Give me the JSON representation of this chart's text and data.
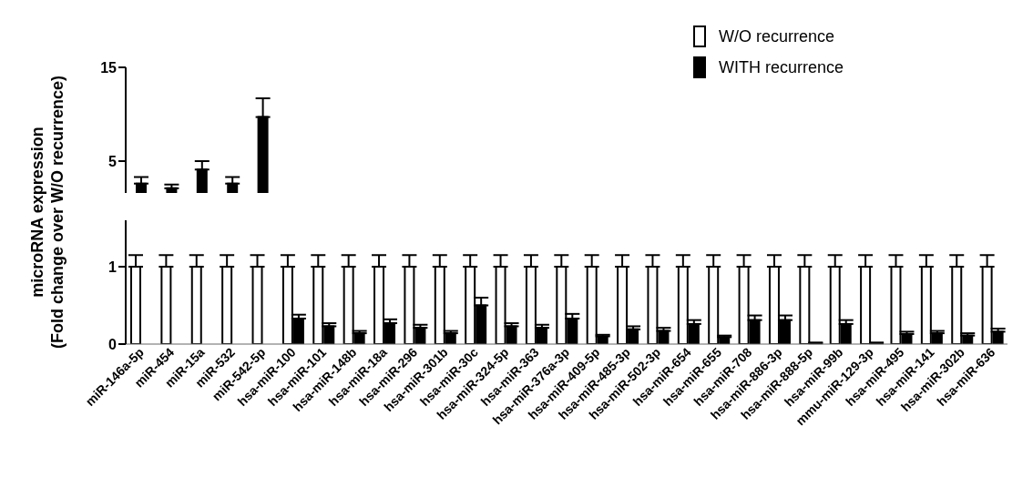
{
  "chart_data": [
    {
      "type": "bar",
      "categories": [
        null,
        null,
        null,
        null,
        null
      ],
      "series": [
        {
          "color": "#000000",
          "values": [
            2.6,
            2.1,
            4.1,
            2.6,
            9.7
          ],
          "errors": [
            0.7,
            0.4,
            0.9,
            0.7,
            2.0
          ]
        }
      ],
      "ylim": [
        1.6,
        15
      ],
      "yticks": [
        5,
        15
      ],
      "tick_labels": "y",
      "grid": false
    },
    {
      "type": "bar",
      "ylabel": "microRNA expression\n(Fold change over W/O recurrence)",
      "categories": [
        "miR-146a-5p",
        "miR-454",
        "miR-15a",
        "miR-532",
        "miR-542-5p",
        "hsa-miR-100",
        "hsa-miR-101",
        "hsa-miR-148b",
        "hsa-miR-18a",
        "hsa-miR-296",
        "hsa-miR-301b",
        "hsa-miR-30c",
        "hsa-miR-324-5p",
        "hsa-miR-363",
        "hsa-miR-376a-3p",
        "hsa-miR-409-5p",
        "hsa-miR-485-3p",
        "hsa-miR-502-3p",
        "hsa-miR-654",
        "hsa-miR-655",
        "hsa-miR-708",
        "hsa-miR-886-3p",
        "hsa-miR-888-5p",
        "hsa-miR-99b",
        "mmu-miR-129-3p",
        "hsa-miR-495",
        "hsa-miR-141",
        "hsa-miR-302b",
        "hsa-miR-636"
      ],
      "series": [
        {
          "name": "W/O recurrence",
          "color": "#ffffff",
          "values": [
            1,
            1,
            1,
            1,
            1,
            1,
            1,
            1,
            1,
            1,
            1,
            1,
            1,
            1,
            1,
            1,
            1,
            1,
            1,
            1,
            1,
            1,
            1,
            1,
            1,
            1,
            1,
            1,
            1
          ],
          "errors": [
            0.15,
            0.15,
            0.15,
            0.15,
            0.15,
            0.15,
            0.15,
            0.15,
            0.15,
            0.15,
            0.15,
            0.15,
            0.15,
            0.15,
            0.15,
            0.15,
            0.15,
            0.15,
            0.15,
            0.15,
            0.15,
            0.15,
            0.15,
            0.15,
            0.15,
            0.15,
            0.15,
            0.15,
            0.15
          ]
        },
        {
          "name": "WITH recurrence",
          "color": "#000000",
          "values": [
            null,
            null,
            null,
            null,
            null,
            0.33,
            0.23,
            0.14,
            0.27,
            0.21,
            0.14,
            0.5,
            0.23,
            0.21,
            0.33,
            0.1,
            0.19,
            0.17,
            0.26,
            0.09,
            0.31,
            0.31,
            0.01,
            0.26,
            0.01,
            0.13,
            0.14,
            0.11,
            0.16
          ],
          "errors": [
            null,
            null,
            null,
            null,
            null,
            0.05,
            0.04,
            0.03,
            0.05,
            0.04,
            0.03,
            0.1,
            0.04,
            0.04,
            0.06,
            0.02,
            0.04,
            0.04,
            0.05,
            0.02,
            0.06,
            0.06,
            0.01,
            0.05,
            0.01,
            0.03,
            0.03,
            0.03,
            0.04
          ]
        }
      ],
      "ylim": [
        0,
        1.6
      ],
      "yticks": [
        0,
        1
      ],
      "legend": "top right",
      "grid": false
    }
  ]
}
